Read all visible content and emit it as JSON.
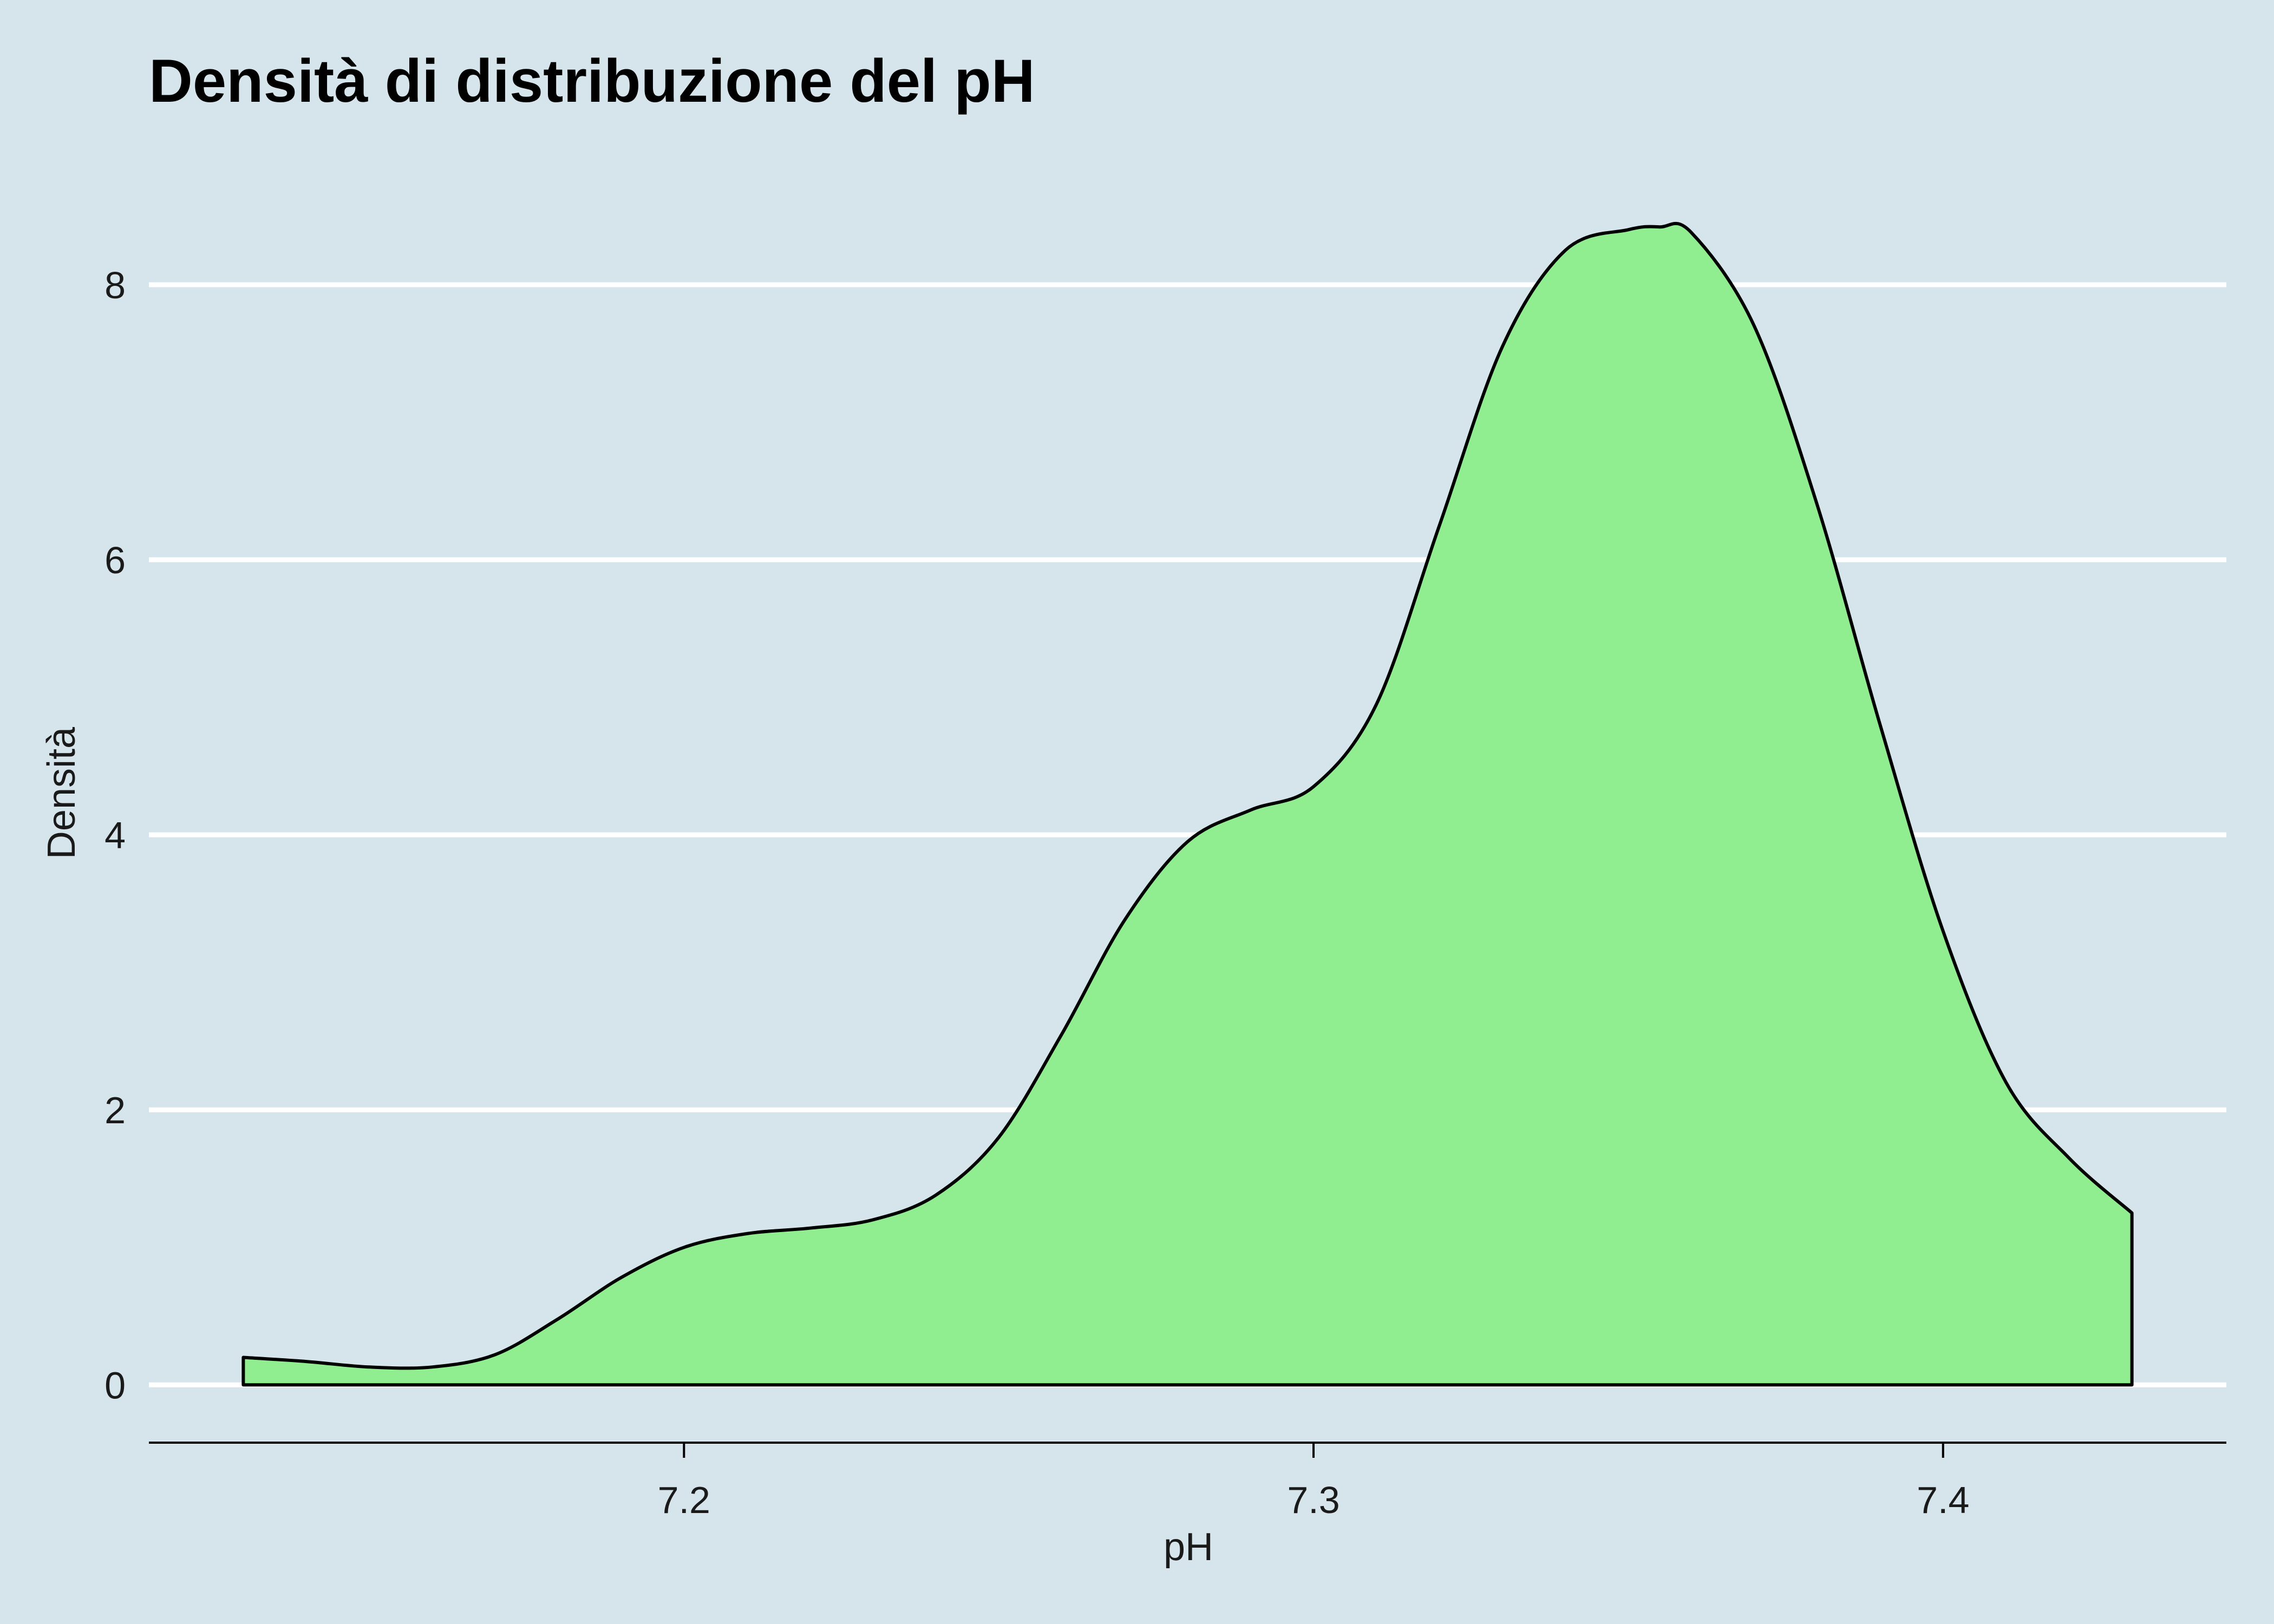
{
  "colors": {
    "background": "#d6e5ec",
    "gridline": "#ffffff",
    "fill": "#90ee90",
    "outline": "#000000",
    "axis": "#000000"
  },
  "chart_data": {
    "type": "area",
    "title": "Densità di distribuzione del pH",
    "xlabel": "pH",
    "ylabel": "Densità",
    "xlim": [
      7.115,
      7.445
    ],
    "ylim": [
      -0.42,
      8.85
    ],
    "x_ticks": [
      7.2,
      7.3,
      7.4
    ],
    "x_tick_labels": [
      "7.2",
      "7.3",
      "7.4"
    ],
    "y_ticks": [
      0,
      2,
      4,
      6,
      8
    ],
    "y_tick_labels": [
      "0",
      "2",
      "4",
      "6",
      "8"
    ],
    "grid": "horizontal major",
    "legend": "none",
    "series": [
      {
        "x": [
          7.13,
          7.14,
          7.15,
          7.16,
          7.17,
          7.18,
          7.19,
          7.2,
          7.21,
          7.22,
          7.23,
          7.24,
          7.25,
          7.26,
          7.27,
          7.28,
          7.29,
          7.3,
          7.31,
          7.32,
          7.33,
          7.34,
          7.35,
          7.355,
          7.36,
          7.37,
          7.38,
          7.39,
          7.4,
          7.41,
          7.42,
          7.43
        ],
        "y": [
          0.2,
          0.17,
          0.13,
          0.13,
          0.22,
          0.48,
          0.78,
          1.0,
          1.1,
          1.14,
          1.2,
          1.38,
          1.8,
          2.55,
          3.38,
          3.95,
          4.18,
          4.35,
          4.95,
          6.25,
          7.55,
          8.25,
          8.4,
          8.42,
          8.38,
          7.7,
          6.4,
          4.8,
          3.3,
          2.2,
          1.65,
          1.25
        ]
      }
    ]
  }
}
